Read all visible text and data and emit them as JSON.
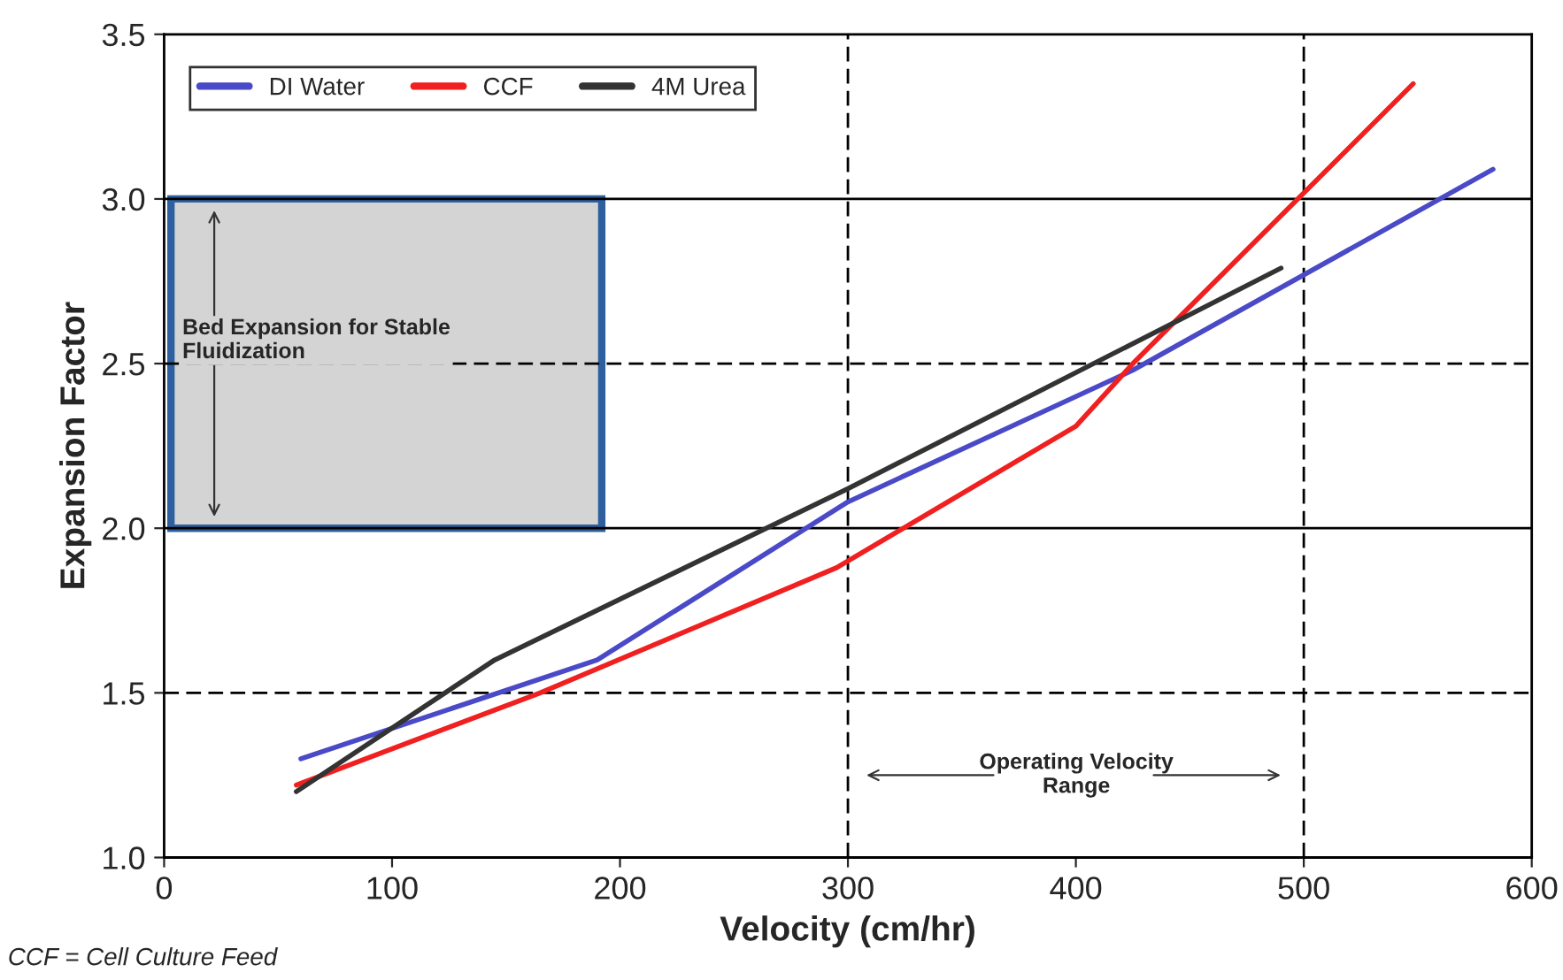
{
  "chart_data": {
    "type": "line",
    "xlabel": "Velocity (cm/hr)",
    "ylabel": "Expansion Factor",
    "xlim": [
      0,
      600
    ],
    "xticks": [
      0,
      100,
      200,
      300,
      400,
      500,
      600
    ],
    "ylim": [
      1.0,
      3.5
    ],
    "yticks": [
      {
        "value": 1.0,
        "label": "1.0"
      },
      {
        "value": 1.5,
        "label": "1.5"
      },
      {
        "value": 2.0,
        "label": "2.0"
      },
      {
        "value": 2.5,
        "label": "2.5"
      },
      {
        "value": 3.0,
        "label": "3.0"
      },
      {
        "value": 3.5,
        "label": "3.5"
      }
    ],
    "series": [
      {
        "name": "DI Water",
        "color": "#4a4ac8",
        "x": [
          60,
          190,
          300,
          425,
          583
        ],
        "values": [
          1.3,
          1.6,
          2.08,
          2.48,
          3.09
        ]
      },
      {
        "name": "CCF",
        "color": "#f02020",
        "x": [
          58,
          165,
          295,
          400,
          425,
          548
        ],
        "values": [
          1.22,
          1.5,
          1.88,
          2.31,
          2.5,
          3.35
        ]
      },
      {
        "name": "4M Urea",
        "color": "#333333",
        "x": [
          58,
          145,
          300,
          490
        ],
        "values": [
          1.2,
          1.6,
          2.12,
          2.79
        ]
      }
    ],
    "ref_lines": [
      {
        "axis": "y",
        "value": 1.5,
        "line_style": "dashed",
        "color": "#000000"
      },
      {
        "axis": "y",
        "value": 2.0,
        "line_style": "solid",
        "color": "#000000"
      },
      {
        "axis": "y",
        "value": 2.5,
        "line_style": "dashed",
        "color": "#000000"
      },
      {
        "axis": "y",
        "value": 3.0,
        "line_style": "solid",
        "color": "#000000"
      },
      {
        "axis": "x",
        "value": 300,
        "line_style": "dashed",
        "color": "#000000"
      },
      {
        "axis": "x",
        "value": 500,
        "line_style": "dashed",
        "color": "#000000"
      }
    ],
    "bands": [
      {
        "axis": "y",
        "from": 2.0,
        "to": 3.0,
        "label": "Bed Expansion for Stable Fluidization",
        "color": "#d4d4d4"
      }
    ],
    "annotations": [
      "Operating Velocity Range",
      "CCF = Cell Culture Feed"
    ],
    "legend": "top left",
    "grid": false,
    "marker": "none",
    "line_style": "solid"
  }
}
